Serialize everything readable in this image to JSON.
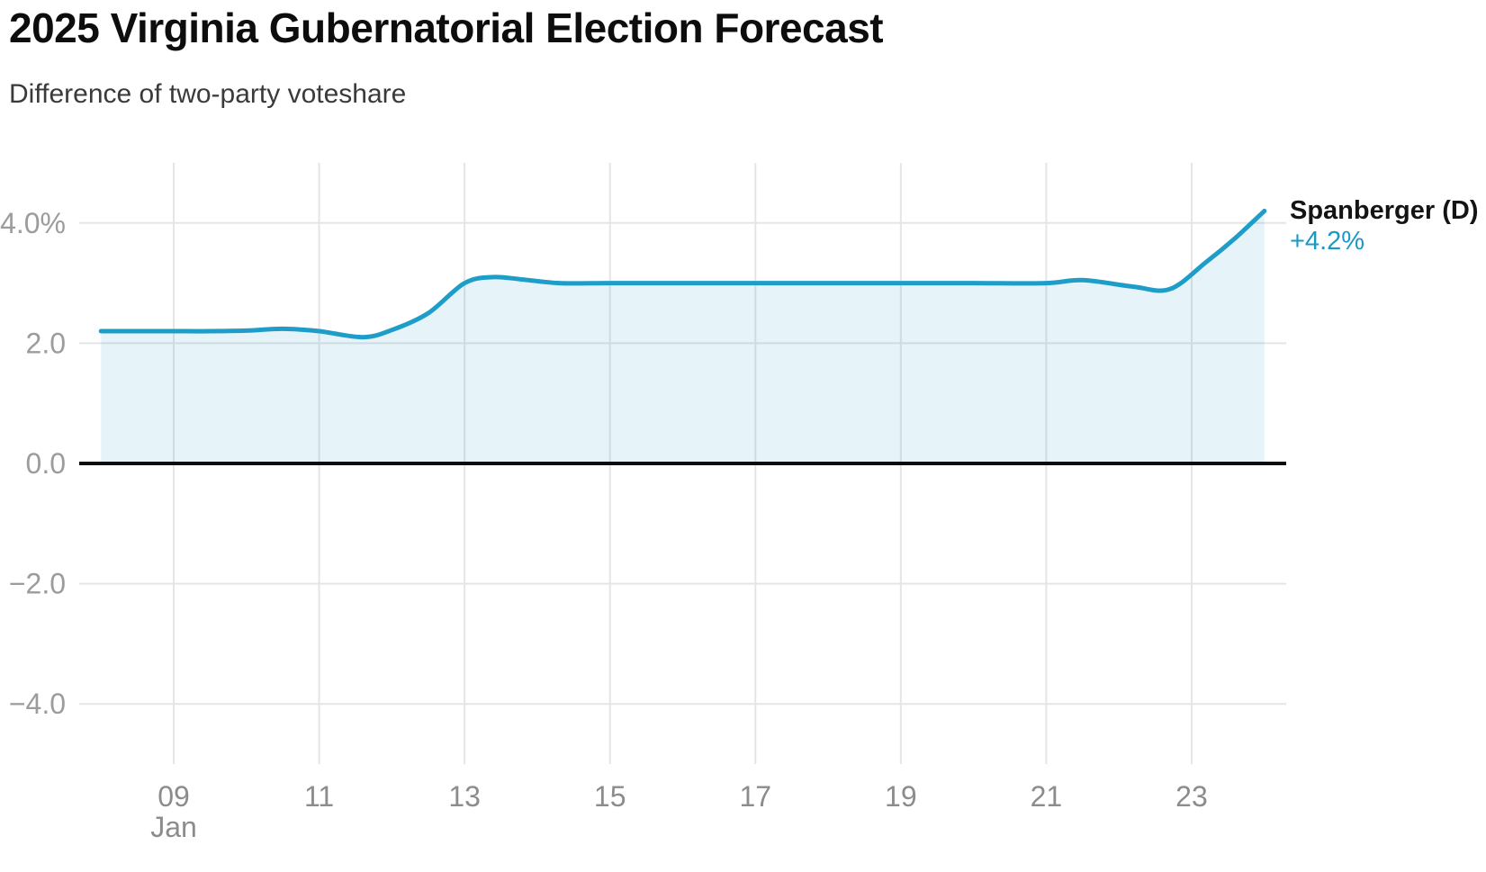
{
  "chart_data": {
    "type": "area",
    "title": "2025 Virginia Gubernatorial Election Forecast",
    "subtitle": "Difference of two-party voteshare",
    "legend_position": "end-of-line",
    "grid": true,
    "series": [
      {
        "name": "Spanberger (D)",
        "end_label": "+4.2%",
        "current_value": 4.2,
        "color": "#1f9dc9",
        "fill_opacity": 0.11,
        "points": [
          [
            8.0,
            2.2
          ],
          [
            8.5,
            2.2
          ],
          [
            9.0,
            2.2
          ],
          [
            9.5,
            2.2
          ],
          [
            10.0,
            2.21
          ],
          [
            10.5,
            2.24
          ],
          [
            11.0,
            2.2
          ],
          [
            11.6,
            2.1
          ],
          [
            12.0,
            2.22
          ],
          [
            12.5,
            2.5
          ],
          [
            13.0,
            3.0
          ],
          [
            13.4,
            3.1
          ],
          [
            13.8,
            3.06
          ],
          [
            14.3,
            3.0
          ],
          [
            15.0,
            3.0
          ],
          [
            16.0,
            3.0
          ],
          [
            17.0,
            3.0
          ],
          [
            18.0,
            3.0
          ],
          [
            19.0,
            3.0
          ],
          [
            20.0,
            3.0
          ],
          [
            21.0,
            3.0
          ],
          [
            21.5,
            3.05
          ],
          [
            22.2,
            2.94
          ],
          [
            22.7,
            2.9
          ],
          [
            23.2,
            3.35
          ],
          [
            23.6,
            3.75
          ],
          [
            24.0,
            4.2
          ]
        ]
      }
    ],
    "x_axis": {
      "month_label": "Jan",
      "range": [
        7.7,
        24.3
      ],
      "ticks": [
        {
          "day": 9,
          "label": "09"
        },
        {
          "day": 11,
          "label": "11"
        },
        {
          "day": 13,
          "label": "13"
        },
        {
          "day": 15,
          "label": "15"
        },
        {
          "day": 17,
          "label": "17"
        },
        {
          "day": 19,
          "label": "19"
        },
        {
          "day": 21,
          "label": "21"
        },
        {
          "day": 23,
          "label": "23"
        }
      ]
    },
    "y_axis": {
      "range": [
        -5,
        5
      ],
      "zero_line": true,
      "ticks": [
        {
          "value": 4,
          "label": "4.0%"
        },
        {
          "value": 2,
          "label": "2.0"
        },
        {
          "value": 0,
          "label": "0.0"
        },
        {
          "value": -2,
          "label": "−2.0"
        },
        {
          "value": -4,
          "label": "−4.0"
        }
      ]
    },
    "colors": {
      "line": "#1f9dc9",
      "value_text": "#1a99c6",
      "grid": "#e5e5e5",
      "zero_line": "#0b0b0b",
      "y_tick_text": "#9c9c9c",
      "x_tick_text": "#8c8c8c",
      "title_text": "#0d0d0d",
      "subtitle_text": "#3a3a3a"
    }
  }
}
